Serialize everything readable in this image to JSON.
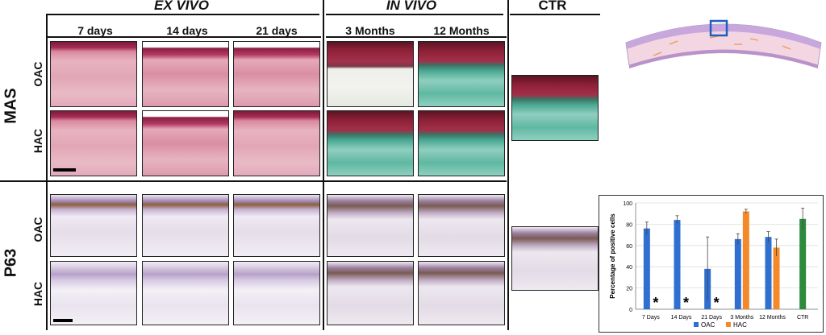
{
  "headers": {
    "ex_vivo": "EX VIVO",
    "in_vivo": "IN VIVO",
    "ctr": "CTR"
  },
  "columns": [
    "7 days",
    "14 days",
    "21 days",
    "3 Months",
    "12 Months"
  ],
  "groups": {
    "mas": "MAS",
    "p63": "P63"
  },
  "rows": {
    "oac": "OAC",
    "hac": "HAC"
  },
  "chart_data": {
    "type": "bar",
    "ylabel": "Percentage of positive cells",
    "ylim": [
      0,
      100
    ],
    "yticks": [
      0,
      20,
      40,
      60,
      80,
      100
    ],
    "categories": [
      "7 Days",
      "14 Days",
      "21 Days",
      "3 Months",
      "12 Months",
      "CTR"
    ],
    "series": [
      {
        "name": "OAC",
        "color": "#2f6fd0",
        "values": [
          76,
          84,
          38,
          66,
          68,
          null
        ],
        "errors": [
          6,
          4,
          30,
          5,
          5,
          null
        ]
      },
      {
        "name": "HAC",
        "color": "#f4892a",
        "values": [
          0,
          0,
          0,
          92,
          58,
          null
        ],
        "errors": [
          0,
          0,
          0,
          2,
          8,
          null
        ]
      },
      {
        "name": "CTR",
        "color": "#2e8b3e",
        "values": [
          null,
          null,
          null,
          null,
          null,
          85
        ],
        "errors": [
          null,
          null,
          null,
          null,
          null,
          10
        ]
      }
    ],
    "legend": [
      "OAC",
      "HAC"
    ],
    "asterisks": [
      "7 Days",
      "14 Days",
      "21 Days"
    ],
    "asterisk_symbol": "*"
  }
}
